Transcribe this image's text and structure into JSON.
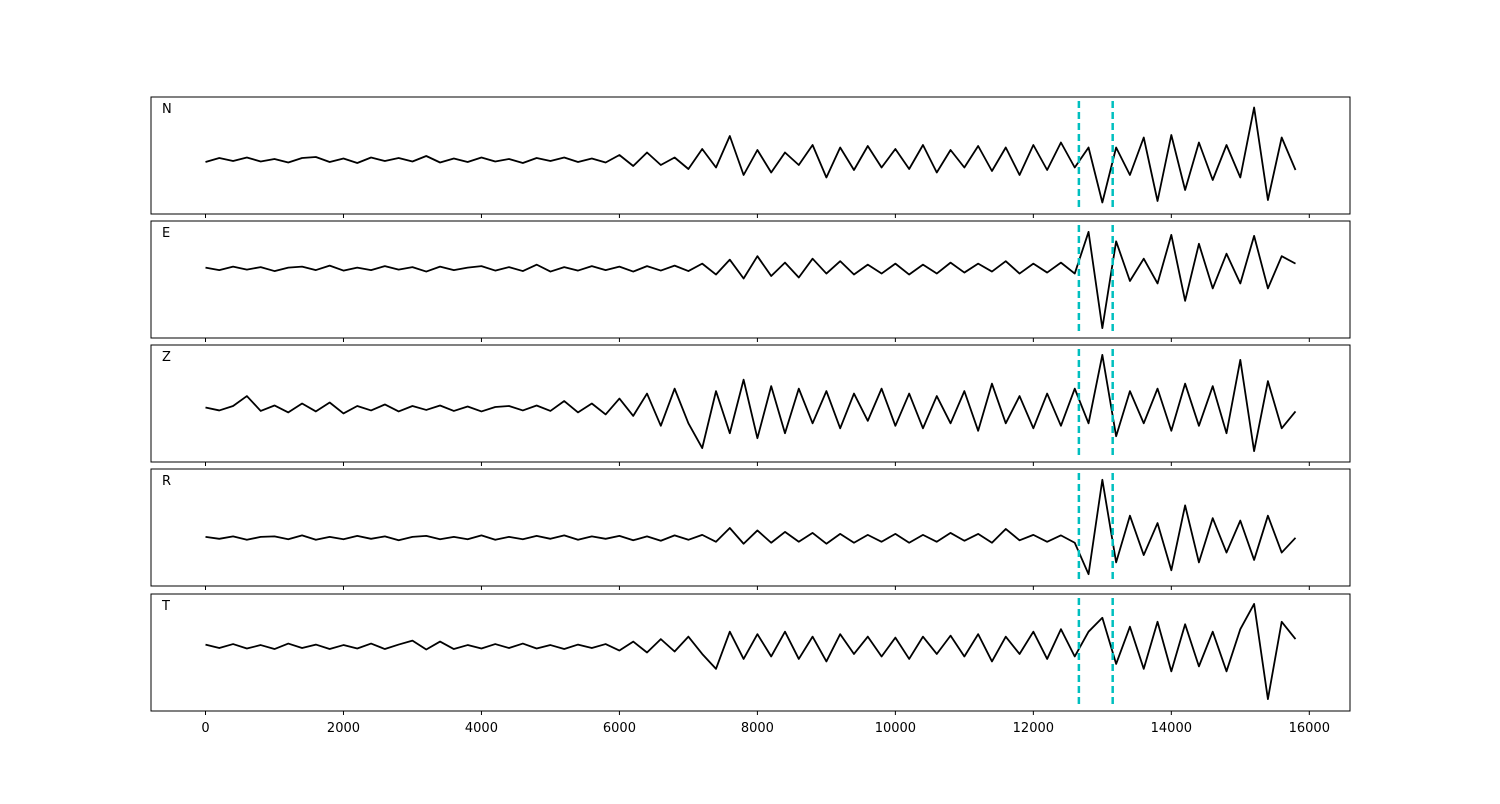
{
  "chart_data": {
    "type": "line",
    "x": [
      0,
      200,
      400,
      600,
      800,
      1000,
      1200,
      1400,
      1600,
      1800,
      2000,
      2200,
      2400,
      2600,
      2800,
      3000,
      3200,
      3400,
      3600,
      3800,
      4000,
      4200,
      4400,
      4600,
      4800,
      5000,
      5200,
      5400,
      5600,
      5800,
      6000,
      6200,
      6400,
      6600,
      6800,
      7000,
      7200,
      7400,
      7600,
      7800,
      8000,
      8200,
      8400,
      8600,
      8800,
      9000,
      9200,
      9400,
      9600,
      9800,
      10000,
      10200,
      10400,
      10600,
      10800,
      11000,
      11200,
      11400,
      11600,
      11800,
      12000,
      12200,
      12400,
      12600,
      12800,
      13000,
      13200,
      13400,
      13600,
      13800,
      14000,
      14200,
      14400,
      14600,
      14800,
      15000,
      15200,
      15400,
      15600,
      15800
    ],
    "xlim": [
      -790,
      16590
    ],
    "xticks": [
      0,
      2000,
      4000,
      6000,
      8000,
      10000,
      12000,
      14000,
      16000
    ],
    "vlines": [
      12660,
      13150
    ],
    "vline_color": "#00bfbf",
    "series": [
      {
        "name": "N",
        "color": "#000000",
        "ylim": [
          -1.08,
          1.26
        ],
        "values": [
          -0.04,
          0.04,
          -0.02,
          0.05,
          -0.03,
          0.02,
          -0.05,
          0.04,
          0.06,
          -0.04,
          0.03,
          -0.06,
          0.05,
          -0.02,
          0.04,
          -0.03,
          0.08,
          -0.05,
          0.03,
          -0.04,
          0.05,
          -0.03,
          0.02,
          -0.06,
          0.04,
          -0.02,
          0.05,
          -0.04,
          0.03,
          -0.05,
          0.1,
          -0.12,
          0.15,
          -0.1,
          0.05,
          -0.18,
          0.22,
          -0.15,
          0.48,
          -0.3,
          0.2,
          -0.25,
          0.15,
          -0.1,
          0.3,
          -0.35,
          0.25,
          -0.2,
          0.28,
          -0.15,
          0.22,
          -0.18,
          0.3,
          -0.25,
          0.2,
          -0.15,
          0.28,
          -0.22,
          0.25,
          -0.3,
          0.3,
          -0.2,
          0.35,
          -0.15,
          0.25,
          -0.85,
          0.25,
          -0.3,
          0.45,
          -0.82,
          0.5,
          -0.6,
          0.35,
          -0.4,
          0.3,
          -0.35,
          1.05,
          -0.8,
          0.45,
          -0.2
        ]
      },
      {
        "name": "E",
        "color": "#000000",
        "ylim": [
          -1.4,
          0.96
        ],
        "values": [
          0.02,
          -0.03,
          0.04,
          -0.02,
          0.03,
          -0.05,
          0.02,
          0.04,
          -0.03,
          0.06,
          -0.04,
          0.02,
          -0.03,
          0.05,
          -0.02,
          0.03,
          -0.06,
          0.04,
          -0.03,
          0.02,
          0.05,
          -0.04,
          0.03,
          -0.05,
          0.08,
          -0.06,
          0.03,
          -0.04,
          0.05,
          -0.03,
          0.04,
          -0.06,
          0.05,
          -0.04,
          0.06,
          -0.05,
          0.1,
          -0.12,
          0.18,
          -0.2,
          0.25,
          -0.15,
          0.12,
          -0.18,
          0.2,
          -0.1,
          0.15,
          -0.12,
          0.08,
          -0.1,
          0.1,
          -0.12,
          0.08,
          -0.1,
          0.12,
          -0.08,
          0.1,
          -0.06,
          0.15,
          -0.1,
          0.1,
          -0.08,
          0.12,
          -0.1,
          0.74,
          -1.2,
          0.55,
          -0.25,
          0.2,
          -0.3,
          0.68,
          -0.65,
          0.5,
          -0.4,
          0.3,
          -0.3,
          0.66,
          -0.4,
          0.25,
          0.1
        ]
      },
      {
        "name": "Z",
        "color": "#000000",
        "ylim": [
          -1.08,
          1.28
        ],
        "values": [
          0.02,
          -0.04,
          0.05,
          0.25,
          -0.05,
          0.06,
          -0.08,
          0.1,
          -0.06,
          0.12,
          -0.1,
          0.05,
          -0.04,
          0.08,
          -0.06,
          0.05,
          -0.03,
          0.06,
          -0.05,
          0.04,
          -0.06,
          0.03,
          0.05,
          -0.04,
          0.06,
          -0.05,
          0.15,
          -0.08,
          0.1,
          -0.12,
          0.2,
          -0.15,
          0.3,
          -0.35,
          0.4,
          -0.3,
          -0.8,
          0.35,
          -0.5,
          0.58,
          -0.6,
          0.45,
          -0.5,
          0.4,
          -0.3,
          0.35,
          -0.4,
          0.3,
          -0.25,
          0.4,
          -0.35,
          0.3,
          -0.4,
          0.25,
          -0.3,
          0.35,
          -0.45,
          0.5,
          -0.3,
          0.25,
          -0.4,
          0.3,
          -0.35,
          0.4,
          -0.3,
          1.08,
          -0.56,
          0.35,
          -0.3,
          0.4,
          -0.45,
          0.5,
          -0.35,
          0.45,
          -0.5,
          0.98,
          -0.86,
          0.55,
          -0.4,
          -0.06
        ]
      },
      {
        "name": "R",
        "color": "#000000",
        "ylim": [
          -0.98,
          1.4
        ],
        "values": [
          0.02,
          -0.02,
          0.03,
          -0.04,
          0.02,
          0.03,
          -0.03,
          0.05,
          -0.04,
          0.02,
          -0.03,
          0.04,
          -0.02,
          0.03,
          -0.05,
          0.02,
          0.04,
          -0.03,
          0.02,
          -0.03,
          0.05,
          -0.04,
          0.02,
          -0.03,
          0.04,
          -0.02,
          0.05,
          -0.04,
          0.03,
          -0.02,
          0.04,
          -0.05,
          0.03,
          -0.06,
          0.05,
          -0.04,
          0.06,
          -0.08,
          0.2,
          -0.12,
          0.15,
          -0.1,
          0.12,
          -0.08,
          0.1,
          -0.12,
          0.08,
          -0.1,
          0.06,
          -0.08,
          0.08,
          -0.1,
          0.06,
          -0.08,
          0.1,
          -0.06,
          0.08,
          -0.1,
          0.18,
          -0.05,
          0.06,
          -0.08,
          0.05,
          -0.1,
          -0.74,
          1.18,
          -0.5,
          0.45,
          -0.35,
          0.3,
          -0.66,
          0.66,
          -0.5,
          0.4,
          -0.3,
          0.35,
          -0.45,
          0.45,
          -0.3,
          0.0
        ]
      },
      {
        "name": "T",
        "color": "#000000",
        "ylim": [
          -1.3,
          1.06
        ],
        "values": [
          0.04,
          -0.03,
          0.05,
          -0.04,
          0.03,
          -0.05,
          0.06,
          -0.03,
          0.04,
          -0.05,
          0.03,
          -0.04,
          0.06,
          -0.05,
          0.04,
          0.12,
          -0.06,
          0.1,
          -0.05,
          0.03,
          -0.04,
          0.05,
          -0.03,
          0.06,
          -0.04,
          0.03,
          -0.05,
          0.04,
          -0.03,
          0.05,
          -0.08,
          0.1,
          -0.12,
          0.15,
          -0.1,
          0.2,
          -0.15,
          -0.45,
          0.3,
          -0.25,
          0.25,
          -0.2,
          0.3,
          -0.25,
          0.2,
          -0.3,
          0.25,
          -0.15,
          0.2,
          -0.2,
          0.18,
          -0.25,
          0.2,
          -0.15,
          0.22,
          -0.2,
          0.25,
          -0.3,
          0.2,
          -0.15,
          0.3,
          -0.25,
          0.35,
          -0.2,
          0.3,
          0.58,
          -0.35,
          0.4,
          -0.45,
          0.5,
          -0.5,
          0.45,
          -0.4,
          0.3,
          -0.5,
          0.35,
          0.86,
          -1.06,
          0.5,
          0.15
        ]
      }
    ]
  }
}
